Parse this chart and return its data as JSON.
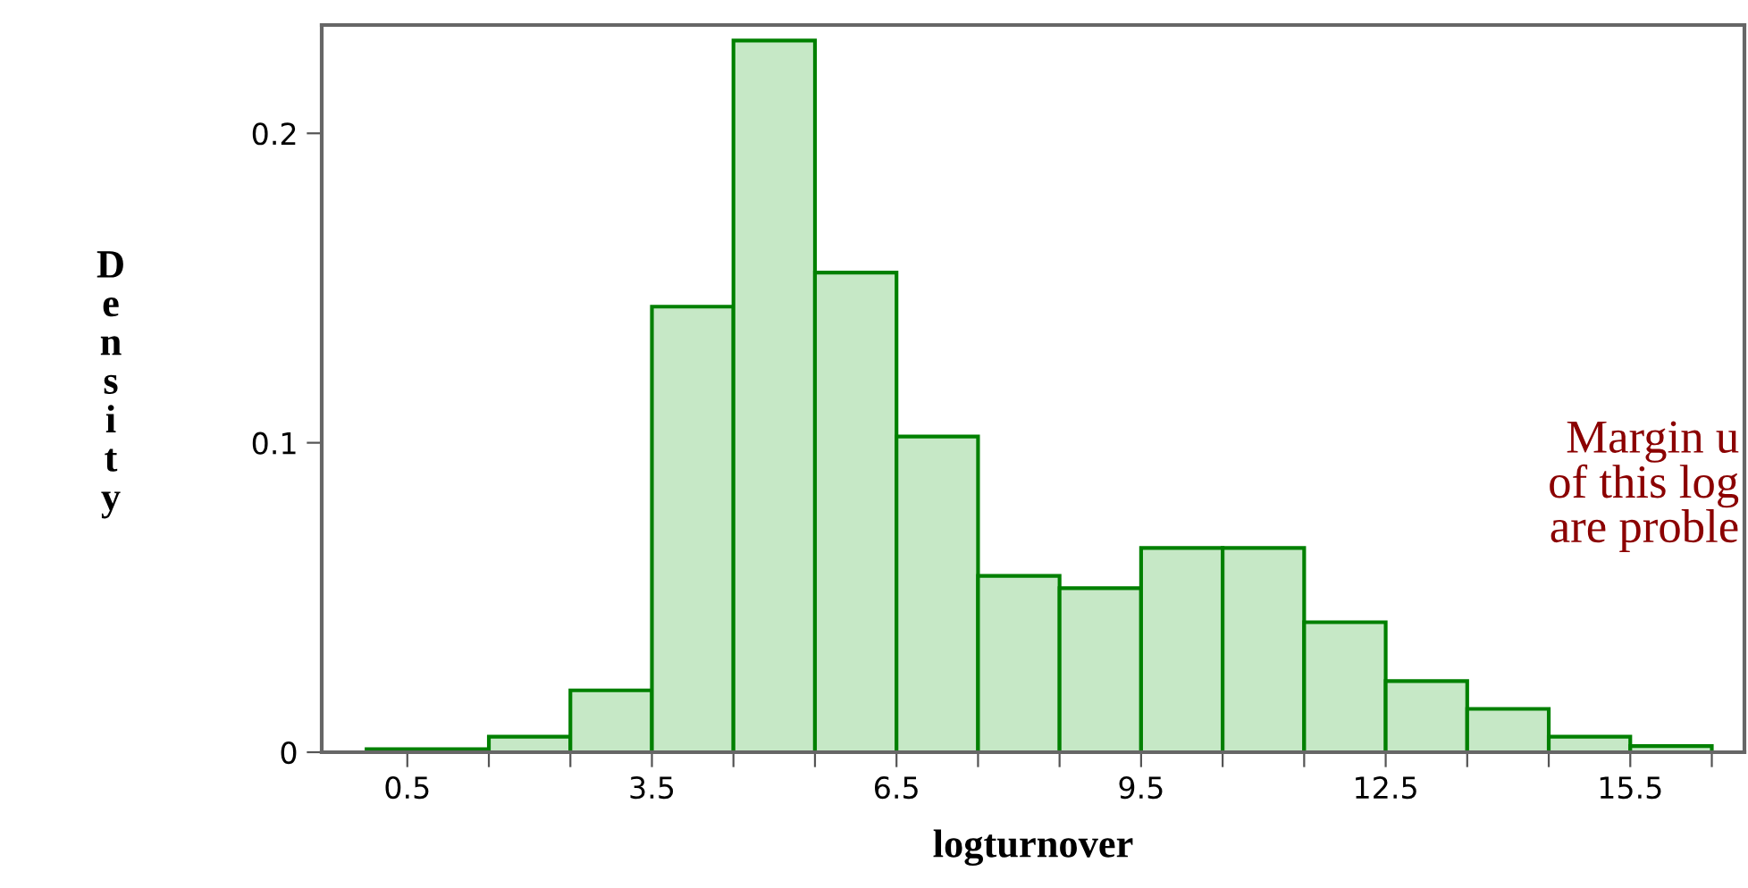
{
  "chart_data": {
    "type": "histogram",
    "xlabel": "logturnover",
    "ylabel": "Density",
    "bins": [
      0,
      1.5,
      2.5,
      3.5,
      4.5,
      5.5,
      6.5,
      7.5,
      8.5,
      9.5,
      10.5,
      11.5,
      12.5,
      13.5,
      14.5,
      15.5,
      16.5
    ],
    "values": [
      0.001,
      0.005,
      0.02,
      0.144,
      0.23,
      0.155,
      0.102,
      0.057,
      0.053,
      0.066,
      0.066,
      0.042,
      0.023,
      0.014,
      0.005,
      0.002
    ],
    "color": "#c6e8c6",
    "xlim": [
      -0.55,
      16.9
    ],
    "ylim": [
      0,
      0.235
    ],
    "xticks": [
      0.5,
      {
        "value": 1.5,
        "label": null
      },
      {
        "value": 2.5,
        "label": null
      },
      3.5,
      {
        "value": 4.5,
        "label": null
      },
      {
        "value": 5.5,
        "label": null
      },
      6.5,
      {
        "value": 7.5,
        "label": null
      },
      {
        "value": 8.5,
        "label": null
      },
      9.5,
      {
        "value": 10.5,
        "label": null
      },
      {
        "value": 11.5,
        "label": null
      },
      12.5,
      {
        "value": 13.5,
        "label": null
      },
      {
        "value": 14.5,
        "label": null
      },
      15.5,
      {
        "value": 16.5,
        "label": null
      }
    ],
    "yticks": [
      0,
      0.1,
      0.2
    ],
    "annotations": [
      "Margin u\nof this log\nare proble"
    ],
    "grid": false
  }
}
